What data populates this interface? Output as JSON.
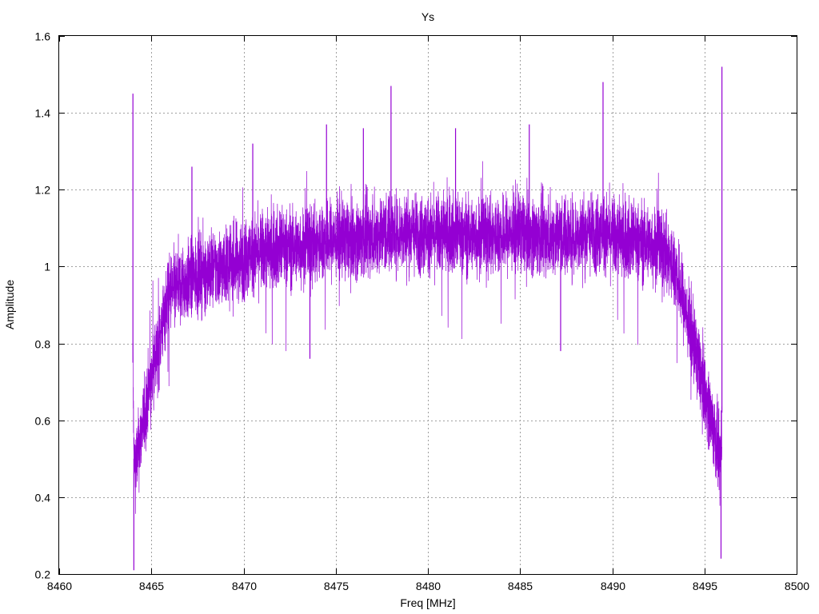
{
  "chart_data": {
    "type": "line",
    "title": "Ys",
    "xlabel": "Freq [MHz]",
    "ylabel": "Amplitude",
    "xlim": [
      8460,
      8500
    ],
    "ylim": [
      0.2,
      1.6
    ],
    "grid": true,
    "x_ticks": [
      "8460",
      "8465",
      "8470",
      "8475",
      "8480",
      "8485",
      "8490",
      "8495",
      "8500"
    ],
    "y_ticks": [
      "0.2",
      "0.4",
      "0.6",
      "0.8",
      "1",
      "1.2",
      "1.4",
      "1.6"
    ],
    "series_color": "#9400d3",
    "series": [
      {
        "x": [
          8464.0,
          8464.05,
          8464.1,
          8464.2,
          8464.3,
          8464.4,
          8464.5,
          8464.6,
          8464.7,
          8464.8,
          8465.0,
          8465.2,
          8465.4,
          8465.6,
          8465.8,
          8466.0,
          8466.5,
          8467.0,
          8467.5,
          8468.0,
          8469.0,
          8470.0,
          8471.0,
          8472.0,
          8473.0,
          8474.0,
          8475.0,
          8476.0,
          8477.0,
          8478.0,
          8479.0,
          8480.0,
          8481.0,
          8482.0,
          8483.0,
          8484.0,
          8485.0,
          8486.0,
          8487.0,
          8488.0,
          8489.0,
          8490.0,
          8491.0,
          8492.0,
          8492.5,
          8493.0,
          8493.5,
          8493.8,
          8494.0,
          8494.3,
          8494.6,
          8494.9,
          8495.2,
          8495.5,
          8495.7,
          8495.85,
          8495.95
        ],
        "y": [
          0.75,
          0.5,
          0.48,
          0.5,
          0.52,
          0.55,
          0.58,
          0.6,
          0.63,
          0.66,
          0.7,
          0.75,
          0.8,
          0.85,
          0.9,
          0.93,
          0.95,
          0.96,
          0.98,
          0.99,
          1.0,
          1.02,
          1.04,
          1.05,
          1.05,
          1.06,
          1.07,
          1.07,
          1.08,
          1.09,
          1.09,
          1.08,
          1.09,
          1.08,
          1.08,
          1.08,
          1.09,
          1.08,
          1.08,
          1.08,
          1.09,
          1.08,
          1.07,
          1.06,
          1.05,
          1.03,
          0.98,
          0.92,
          0.88,
          0.82,
          0.76,
          0.7,
          0.64,
          0.58,
          0.53,
          0.48,
          0.62
        ],
        "noise_band": 0.1,
        "spikes": [
          {
            "x": 8464.0,
            "y": 1.45
          },
          {
            "x": 8464.05,
            "y": 0.21
          },
          {
            "x": 8467.2,
            "y": 1.26
          },
          {
            "x": 8470.5,
            "y": 1.32
          },
          {
            "x": 8474.5,
            "y": 1.37
          },
          {
            "x": 8476.5,
            "y": 1.36
          },
          {
            "x": 8478.0,
            "y": 1.47
          },
          {
            "x": 8481.5,
            "y": 1.36
          },
          {
            "x": 8485.5,
            "y": 1.37
          },
          {
            "x": 8489.5,
            "y": 1.48
          },
          {
            "x": 8473.6,
            "y": 0.76
          },
          {
            "x": 8487.2,
            "y": 0.78
          },
          {
            "x": 8495.9,
            "y": 0.24
          },
          {
            "x": 8495.95,
            "y": 1.52
          }
        ]
      }
    ]
  }
}
